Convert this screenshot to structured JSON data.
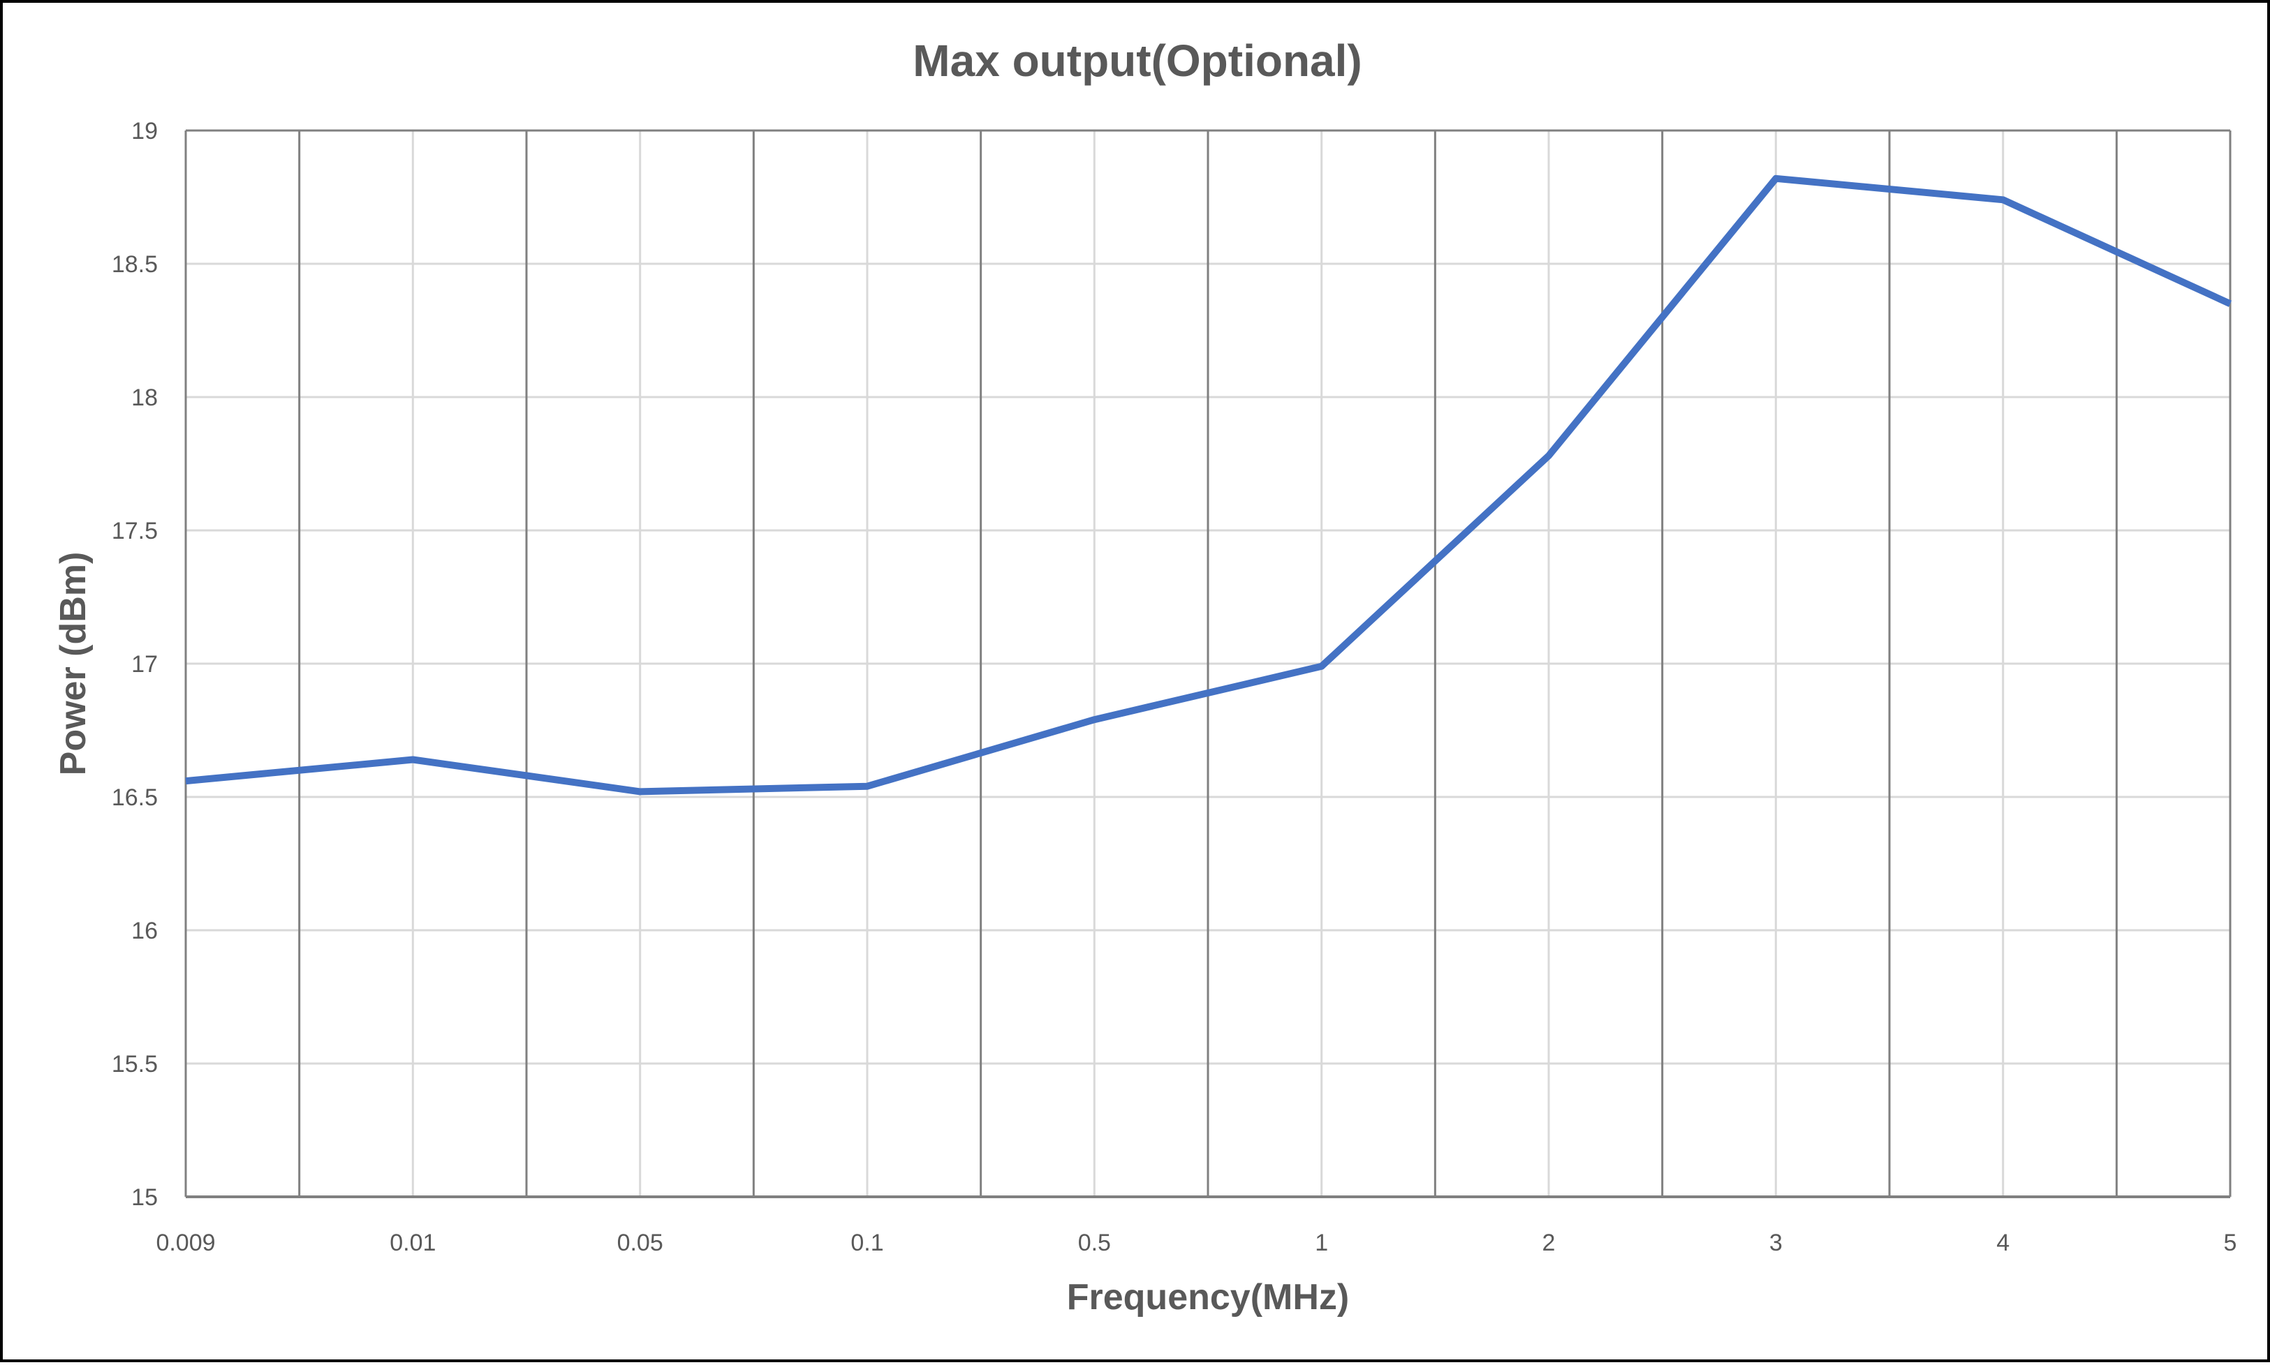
{
  "chart_data": {
    "type": "line",
    "title": "Max output(Optional)",
    "xlabel": "Frequency(MHz)",
    "ylabel": "Power (dBm)",
    "categories": [
      "0.009",
      "0.01",
      "0.05",
      "0.1",
      "0.5",
      "1",
      "2",
      "3",
      "4",
      "5"
    ],
    "series": [
      {
        "name": "Max output",
        "color": "#4472C4",
        "values": [
          16.56,
          16.64,
          16.52,
          16.54,
          16.79,
          16.99,
          17.78,
          18.82,
          18.74,
          18.35
        ]
      }
    ],
    "ylim": [
      15,
      19
    ],
    "yticks": [
      "15",
      "15.5",
      "16",
      "16.5",
      "17",
      "17.5",
      "18",
      "18.5",
      "19"
    ],
    "grid": true,
    "legend": "none"
  },
  "colors": {
    "line": "#4472C4",
    "text": "#595959",
    "major_grid": "#D9D9D9",
    "minor_vgrid": "#808080",
    "axis": "#808080",
    "border": "#000000"
  }
}
